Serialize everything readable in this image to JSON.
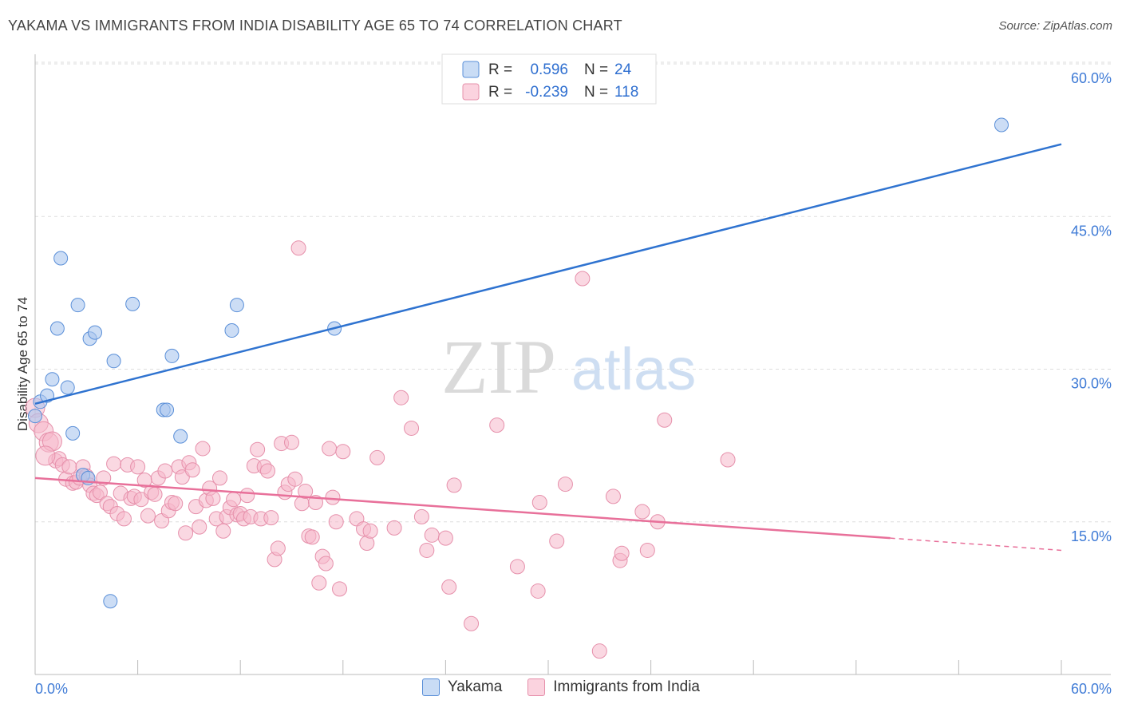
{
  "title": "YAKAMA VS IMMIGRANTS FROM INDIA DISABILITY AGE 65 TO 74 CORRELATION CHART",
  "source": "Source: ZipAtlas.com",
  "watermark": {
    "zip": "ZIP",
    "atlas": "atlas"
  },
  "colors": {
    "blue_fill": "#aac6ee",
    "blue_stroke": "#5a8fd8",
    "blue_line": "#2f73d0",
    "pink_fill": "#f5b8ca",
    "pink_stroke": "#e690ab",
    "pink_line": "#e8709a",
    "tick_text": "#3f7bd6",
    "grid": "#dddddd"
  },
  "stats_legend": {
    "rows": [
      {
        "r_label": "R =",
        "r_value": "0.596",
        "n_label": "N =",
        "n_value": "24",
        "series": "blue"
      },
      {
        "r_label": "R =",
        "r_value": "-0.239",
        "n_label": "N =",
        "n_value": "118",
        "series": "pink"
      }
    ]
  },
  "legend": {
    "items": [
      {
        "label": "Yakama",
        "series": "blue"
      },
      {
        "label": "Immigrants from India",
        "series": "pink"
      }
    ]
  },
  "chart_data": {
    "type": "scatter",
    "title": "YAKAMA VS IMMIGRANTS FROM INDIA DISABILITY AGE 65 TO 74 CORRELATION CHART",
    "xlabel": "",
    "ylabel": "Disability Age 65 to 74",
    "xlim": [
      0,
      60
    ],
    "ylim": [
      0,
      60
    ],
    "x_tick_labels": [
      "0.0%",
      "60.0%"
    ],
    "y_ticks": [
      15,
      30,
      45,
      60
    ],
    "y_tick_labels": [
      "15.0%",
      "30.0%",
      "45.0%",
      "60.0%"
    ],
    "grid": "horizontal dashed",
    "legend_position": "top-center and bottom",
    "series": [
      {
        "name": "Yakama",
        "color": "#aac6ee",
        "trend": {
          "x": [
            0,
            60
          ],
          "y": [
            26.6,
            52.1
          ],
          "style": "solid"
        },
        "points": [
          [
            0.0,
            25.4
          ],
          [
            0.3,
            26.8
          ],
          [
            0.7,
            27.4
          ],
          [
            1.0,
            29.0
          ],
          [
            1.3,
            34.0
          ],
          [
            1.5,
            40.9
          ],
          [
            1.9,
            28.2
          ],
          [
            2.2,
            23.7
          ],
          [
            2.5,
            36.3
          ],
          [
            2.8,
            19.6
          ],
          [
            3.1,
            19.3
          ],
          [
            3.2,
            33.0
          ],
          [
            3.5,
            33.6
          ],
          [
            4.6,
            30.8
          ],
          [
            5.7,
            36.4
          ],
          [
            7.5,
            26.0
          ],
          [
            7.7,
            26.0
          ],
          [
            8.0,
            31.3
          ],
          [
            8.5,
            23.4
          ],
          [
            11.5,
            33.8
          ],
          [
            11.8,
            36.3
          ],
          [
            17.5,
            34.0
          ],
          [
            56.5,
            54.0
          ],
          [
            4.4,
            7.2
          ]
        ]
      },
      {
        "name": "Immigrants from India",
        "color": "#f5b8ca",
        "trend": {
          "x": [
            0,
            50
          ],
          "y": [
            19.3,
            13.4
          ],
          "style": "solid",
          "dashed_extension": {
            "x": [
              50,
              60
            ],
            "y": [
              13.4,
              12.2
            ]
          }
        },
        "points": [
          [
            0.0,
            26.2
          ],
          [
            0.2,
            24.7
          ],
          [
            0.5,
            23.9
          ],
          [
            0.8,
            22.8
          ],
          [
            1.0,
            22.9
          ],
          [
            1.2,
            21.0
          ],
          [
            1.4,
            21.2
          ],
          [
            1.6,
            20.6
          ],
          [
            1.8,
            19.2
          ],
          [
            2.0,
            20.4
          ],
          [
            2.2,
            18.8
          ],
          [
            2.4,
            18.9
          ],
          [
            2.6,
            19.3
          ],
          [
            2.8,
            20.4
          ],
          [
            3.0,
            19.5
          ],
          [
            3.2,
            18.6
          ],
          [
            3.4,
            17.8
          ],
          [
            3.6,
            17.6
          ],
          [
            3.8,
            17.9
          ],
          [
            4.0,
            19.3
          ],
          [
            4.2,
            16.8
          ],
          [
            4.4,
            16.5
          ],
          [
            4.6,
            20.7
          ],
          [
            4.8,
            15.8
          ],
          [
            5.0,
            17.8
          ],
          [
            5.2,
            15.3
          ],
          [
            5.4,
            20.6
          ],
          [
            5.6,
            17.3
          ],
          [
            5.8,
            17.5
          ],
          [
            6.0,
            20.4
          ],
          [
            6.2,
            17.2
          ],
          [
            6.4,
            19.1
          ],
          [
            6.6,
            15.6
          ],
          [
            6.8,
            17.9
          ],
          [
            7.0,
            17.7
          ],
          [
            7.2,
            19.3
          ],
          [
            7.4,
            15.1
          ],
          [
            7.6,
            20.0
          ],
          [
            7.8,
            16.1
          ],
          [
            8.0,
            16.9
          ],
          [
            8.2,
            16.8
          ],
          [
            8.4,
            20.4
          ],
          [
            8.6,
            19.4
          ],
          [
            8.8,
            13.9
          ],
          [
            9.0,
            20.8
          ],
          [
            9.2,
            20.1
          ],
          [
            9.4,
            16.5
          ],
          [
            9.6,
            14.5
          ],
          [
            9.8,
            22.2
          ],
          [
            10.0,
            17.1
          ],
          [
            10.2,
            18.3
          ],
          [
            10.4,
            17.3
          ],
          [
            10.6,
            15.3
          ],
          [
            10.8,
            19.3
          ],
          [
            11.0,
            14.1
          ],
          [
            11.2,
            15.5
          ],
          [
            11.4,
            16.4
          ],
          [
            11.6,
            17.2
          ],
          [
            11.8,
            15.7
          ],
          [
            12.0,
            15.8
          ],
          [
            12.2,
            15.3
          ],
          [
            12.4,
            17.6
          ],
          [
            12.6,
            15.5
          ],
          [
            12.8,
            20.5
          ],
          [
            13.0,
            22.1
          ],
          [
            13.2,
            15.3
          ],
          [
            13.4,
            20.4
          ],
          [
            13.6,
            20.0
          ],
          [
            13.8,
            15.4
          ],
          [
            14.0,
            11.3
          ],
          [
            14.2,
            12.4
          ],
          [
            14.4,
            22.7
          ],
          [
            14.6,
            17.9
          ],
          [
            14.8,
            18.7
          ],
          [
            15.0,
            22.8
          ],
          [
            15.2,
            19.2
          ],
          [
            15.4,
            41.9
          ],
          [
            15.6,
            16.8
          ],
          [
            15.8,
            18.0
          ],
          [
            16.0,
            13.6
          ],
          [
            16.2,
            13.5
          ],
          [
            16.4,
            16.9
          ],
          [
            16.6,
            9.0
          ],
          [
            16.8,
            11.6
          ],
          [
            17.0,
            10.9
          ],
          [
            17.2,
            22.2
          ],
          [
            17.4,
            17.4
          ],
          [
            17.6,
            15.0
          ],
          [
            17.8,
            8.4
          ],
          [
            18.0,
            21.9
          ],
          [
            18.8,
            15.3
          ],
          [
            19.2,
            14.3
          ],
          [
            19.4,
            12.9
          ],
          [
            19.6,
            14.1
          ],
          [
            20.0,
            21.3
          ],
          [
            21.0,
            14.4
          ],
          [
            21.4,
            27.2
          ],
          [
            22.0,
            24.2
          ],
          [
            22.6,
            15.5
          ],
          [
            22.9,
            12.2
          ],
          [
            23.2,
            13.7
          ],
          [
            24.0,
            13.4
          ],
          [
            24.2,
            8.6
          ],
          [
            24.5,
            18.6
          ],
          [
            25.5,
            5.0
          ],
          [
            27.0,
            24.5
          ],
          [
            28.2,
            10.6
          ],
          [
            29.4,
            8.2
          ],
          [
            29.5,
            16.9
          ],
          [
            30.5,
            13.1
          ],
          [
            31.0,
            18.7
          ],
          [
            32.0,
            38.9
          ],
          [
            33.0,
            2.3
          ],
          [
            33.8,
            17.5
          ],
          [
            34.2,
            11.2
          ],
          [
            34.3,
            11.9
          ],
          [
            35.5,
            16.0
          ],
          [
            35.8,
            12.2
          ],
          [
            36.4,
            15.0
          ],
          [
            36.8,
            25.0
          ],
          [
            40.5,
            21.1
          ],
          [
            0.6,
            21.5
          ]
        ]
      }
    ]
  }
}
